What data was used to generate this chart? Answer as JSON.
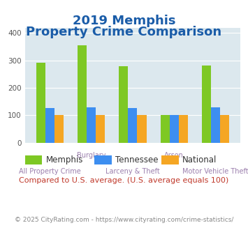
{
  "title_line1": "2019 Memphis",
  "title_line2": "Property Crime Comparison",
  "categories": [
    "All Property Crime",
    "Burglary",
    "Larceny & Theft",
    "Arson",
    "Motor Vehicle Theft"
  ],
  "group_labels_top": [
    "",
    "Burglary",
    "",
    "Arson",
    ""
  ],
  "group_labels_bottom": [
    "All Property Crime",
    "",
    "Larceny & Theft",
    "",
    "Motor Vehicle Theft"
  ],
  "memphis": [
    291,
    355,
    278,
    101,
    281
  ],
  "tennessee": [
    126,
    129,
    127,
    101,
    129
  ],
  "national": [
    100,
    100,
    100,
    100,
    100
  ],
  "color_memphis": "#7ec824",
  "color_tennessee": "#3d8ef0",
  "color_national": "#f5a623",
  "ylim": [
    0,
    420
  ],
  "yticks": [
    0,
    100,
    200,
    300,
    400
  ],
  "bar_width": 0.22,
  "bg_color": "#dce8ee",
  "legend_note": "Compared to U.S. average. (U.S. average equals 100)",
  "footer": "© 2025 CityRating.com - https://www.cityrating.com/crime-statistics/",
  "title_color": "#1a5ca8",
  "label_color": "#9b7fad",
  "footer_color": "#888888",
  "note_color": "#c0392b",
  "legend_memphis": "Memphis",
  "legend_tennessee": "Tennessee",
  "legend_national": "National"
}
